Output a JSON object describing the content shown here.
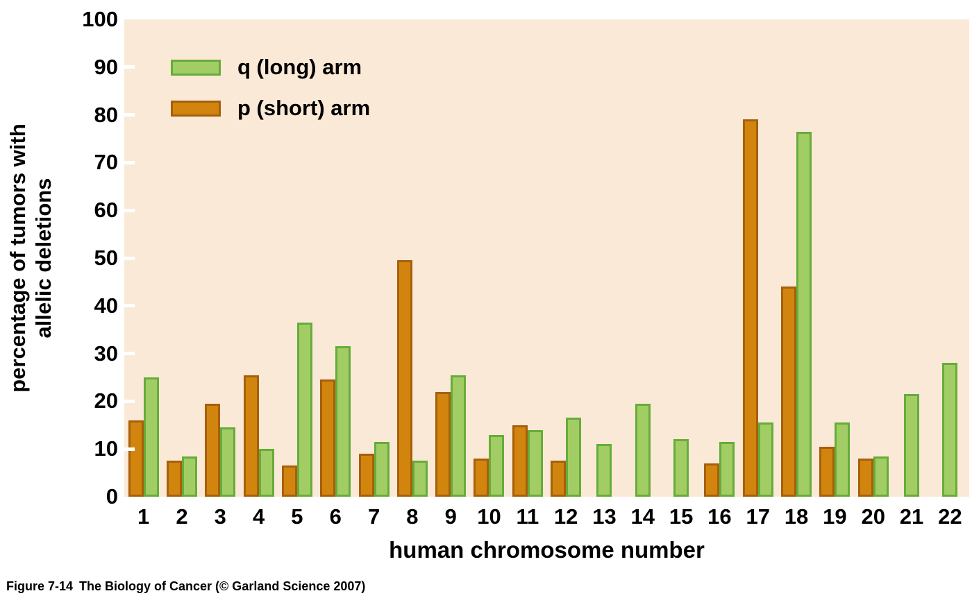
{
  "legend": {
    "items": [
      {
        "id": "q",
        "label": "q (long) arm",
        "swatch_fill": "#A2CD64",
        "swatch_border": "#66AC3A"
      },
      {
        "id": "p",
        "label": "p (short) arm",
        "swatch_fill": "#D2850E",
        "swatch_border": "#A65F0B"
      }
    ]
  },
  "y_axis": {
    "label_line1": "percentage of tumors with",
    "label_line2": "allelic deletions",
    "ticks": [
      0,
      10,
      20,
      30,
      40,
      50,
      60,
      70,
      80,
      90,
      100
    ]
  },
  "x_axis": {
    "label": "human chromosome number"
  },
  "footer": {
    "figure_label": "Figure 7-14",
    "caption": "The Biology of Cancer (© Garland Science 2007)"
  },
  "colors": {
    "page_background": "#FFFFFF",
    "plot_background": "#FBE9D7",
    "text": "#000000",
    "tick_dash": "#FFFFFF",
    "p_fill": "#D2850E",
    "p_border": "#A65F0B",
    "q_fill": "#A2CD64",
    "q_border": "#66AC3A"
  },
  "chart_data": {
    "type": "bar",
    "title": "",
    "xlabel": "human chromosome number",
    "ylabel": "percentage of tumors with allelic deletions",
    "ylim": [
      0,
      100
    ],
    "y_tick_step": 10,
    "grid": false,
    "legend_position": "top-left",
    "categories": [
      "1",
      "2",
      "3",
      "4",
      "5",
      "6",
      "7",
      "8",
      "9",
      "10",
      "11",
      "12",
      "13",
      "14",
      "15",
      "16",
      "17",
      "18",
      "19",
      "20",
      "21",
      "22"
    ],
    "series": [
      {
        "name": "p (short) arm",
        "arm": "p",
        "color": "#D2850E",
        "values": [
          16,
          7.5,
          19.5,
          25.5,
          6.5,
          24.5,
          9,
          49.5,
          22,
          8,
          15,
          7.5,
          null,
          null,
          null,
          7,
          79,
          44,
          10.5,
          8,
          null,
          null
        ]
      },
      {
        "name": "q (long) arm",
        "arm": "q",
        "color": "#A2CD64",
        "values": [
          25,
          8.5,
          14.5,
          10,
          36.5,
          31.5,
          11.5,
          7.5,
          25.5,
          13,
          14,
          16.5,
          11,
          19.5,
          12,
          11.5,
          15.5,
          76.5,
          15.5,
          8.5,
          21.5,
          28
        ]
      }
    ]
  }
}
